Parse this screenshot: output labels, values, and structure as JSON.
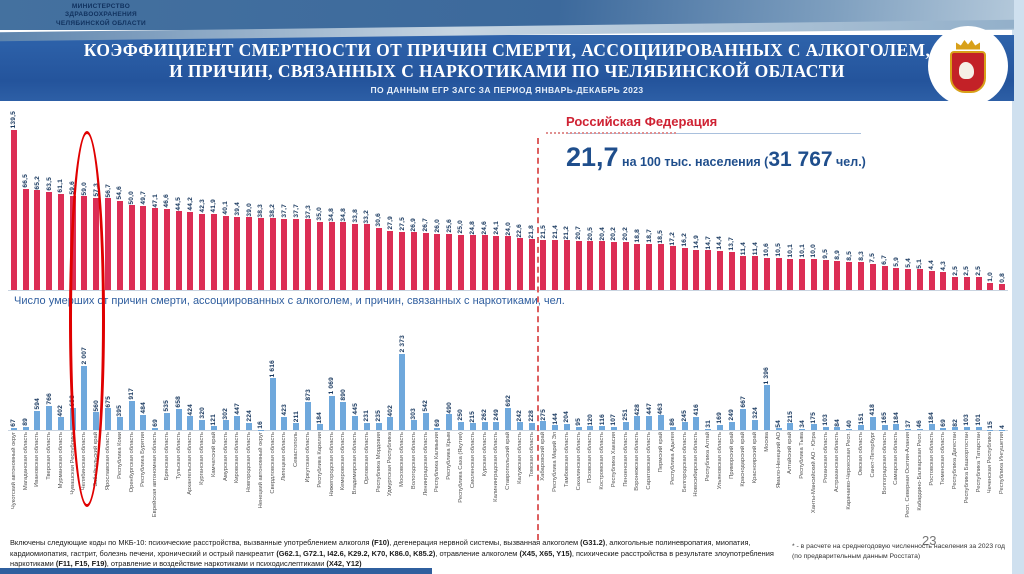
{
  "header": {
    "ministry_lines": [
      "МИНИСТЕРСТВО",
      "ЗДРАВООХРАНЕНИЯ",
      "ЧЕЛЯБИНСКОЙ ОБЛАСТИ"
    ],
    "title_lines": [
      "КОЭФФИЦИЕНТ СМЕРТНОСТИ  ОТ ПРИЧИН СМЕРТИ, АССОЦИИРОВАННЫХ С АЛКОГОЛЕМ,",
      "И ПРИЧИН, СВЯЗАННЫХ С НАРКОТИКАМИ ПО ЧЕЛЯБИНСКОЙ ОБЛАСТИ"
    ],
    "subtitle": "ПО ДАННЫМ ЕГР ЗАГС ЗА ПЕРИОД ЯНВАРЬ-ДЕКАБРЬ 2023"
  },
  "rf": {
    "title": "Российская Федерация",
    "value": "21,7",
    "per_text": " на 100 тыс. населения (",
    "count": "31 767",
    "unit_text": " чел.)"
  },
  "footer": {
    "segments": [
      {
        "text": "Включены следующие коды по МКБ-10: психические расстройства, вызванные употреблением алкоголя ",
        "bold": false
      },
      {
        "text": "(F10)",
        "bold": true
      },
      {
        "text": ", дегенерация нервной системы, вызванная алкоголем ",
        "bold": false
      },
      {
        "text": "(G31.2)",
        "bold": true
      },
      {
        "text": ", алкогольные полиневропатия, миопатия, кардиомиопатия, гастрит, болезнь печени, хронический и острый панкреатит ",
        "bold": false
      },
      {
        "text": "(G62.1, G72.1, I42.6, K29.2, K70, K86.0, K85.2)",
        "bold": true
      },
      {
        "text": ", отравление алкоголем ",
        "bold": false
      },
      {
        "text": "(X45, X65, Y15)",
        "bold": true
      },
      {
        "text": ", психические расстройства в результате злоупотребления наркотиками ",
        "bold": false
      },
      {
        "text": "(F11, F15, F19)",
        "bold": true
      },
      {
        "text": ", отравление и воздействие  наркотиками и психодислептиками ",
        "bold": false
      },
      {
        "text": "(X42, Y12)",
        "bold": true
      }
    ],
    "note": "* - в расчете на среднегодовую численность населения за 2023 год (по предварительным данным Росстата)"
  },
  "page_number": "23",
  "colors": {
    "bar_red": "#dc2e55",
    "bar_blue": "#6fa8dc",
    "value_label_blue": "#17375e",
    "header_blue": "#24549c",
    "rf_red": "#cf2233",
    "highlight_red": "#e00000",
    "section_label_blue": "#2e5d9e"
  },
  "chart_data": [
    {
      "type": "bar",
      "title": "",
      "ylabel": "Коэффициент смертности на 100 тыс. населения",
      "bar_color": "#dc2e55",
      "grid": false,
      "legend": "none",
      "categories": [
        "Чукотский автономный округ",
        "Магаданская область",
        "Ивановская область",
        "Тверская область",
        "Мурманская область",
        "Чувашская Республика",
        "Челябинская область",
        "Забайкальский край",
        "Ярославская область",
        "Республика Коми",
        "Оренбургская область",
        "Республика Бурятия",
        "Еврейская автономная область",
        "Брянская область",
        "Тульская область",
        "Архангельская область",
        "Курганская область",
        "Камчатский край",
        "Амурская область",
        "Кировская область",
        "Новгородская область",
        "Ненецкий автономный округ",
        "Свердловская область",
        "Липецкая область",
        "Севастополь",
        "Иркутская область",
        "Республика Карелия",
        "Нижегородская область",
        "Кемеровская область",
        "Владимирская область",
        "Орловская область",
        "Республика Мордовия",
        "Удмуртская Республика",
        "Московская область",
        "Вологодская область",
        "Ленинградская область",
        "Республика Калмыкия",
        "Республика Крым",
        "Республика Саха (Якутия)",
        "Смоленская область",
        "Курская область",
        "Калининградская область",
        "Ставропольский край",
        "Калужская область",
        "Томская область",
        "Хабаровский край",
        "Республика Марий Эл",
        "Тамбовская область",
        "Сахалинская область",
        "Псковская область",
        "Костромская область",
        "Республика Хакасия",
        "Пензенская область",
        "Воронежская область",
        "Саратовская область",
        "Пермский край",
        "Республика Адыгея",
        "Белгородская область",
        "Новосибирская область",
        "Республика Алтай",
        "Ульяновская область",
        "Приморский край",
        "Краснодарский край",
        "Красноярский край",
        "Москва",
        "Ямало-Ненецкий АО",
        "Алтайский край",
        "Республика Тыва",
        "Ханты-Мансийский АО - Югра",
        "Рязанская область",
        "Астраханская область",
        "Карачаево-Черкесская Респ.",
        "Омская область",
        "Санкт-Петербург",
        "Волгоградская область",
        "Самарская область",
        "Респ. Северная Осетия-Алания",
        "Кабардино-Балкарская Респ.",
        "Ростовская область",
        "Тюменская область",
        "Республика Дагестан",
        "Республика Башкортостан",
        "Республика Татарстан",
        "Чеченская Республика",
        "Республика Ингушетия"
      ],
      "values": [
        139.5,
        66.5,
        65.2,
        63.5,
        61.1,
        59.6,
        59.0,
        57.3,
        56.7,
        54.6,
        50.0,
        49.7,
        47.1,
        46.6,
        44.5,
        44.2,
        42.3,
        41.9,
        40.1,
        39.4,
        39.0,
        38.3,
        38.2,
        37.7,
        37.7,
        37.3,
        35.0,
        34.8,
        34.8,
        33.8,
        33.2,
        30.6,
        27.9,
        27.5,
        26.9,
        26.7,
        26.0,
        25.6,
        25.0,
        24.8,
        24.6,
        24.1,
        24.0,
        22.6,
        21.8,
        21.5,
        21.4,
        21.2,
        20.7,
        20.5,
        20.4,
        20.2,
        20.2,
        18.8,
        18.7,
        18.5,
        17.2,
        16.2,
        14.9,
        14.7,
        14.4,
        13.7,
        11.4,
        11.4,
        10.6,
        10.5,
        10.1,
        10.1,
        10.0,
        9.5,
        8.9,
        8.5,
        8.3,
        7.5,
        6.7,
        5.9,
        5.4,
        5.1,
        4.4,
        4.3,
        2.5,
        2.5,
        2.5,
        1.0,
        0.8
      ],
      "highlight": {
        "category": "Челябинская область",
        "index": 6,
        "style": "red-ellipse"
      },
      "reference_line": {
        "label": "Российская Федерация",
        "value": 21.7,
        "count": 31767,
        "after_index": 44,
        "style": "red-dashed-vertical"
      }
    },
    {
      "type": "bar",
      "title": "Число умерших от причин смерти, ассоциированных с алкоголем, и причин, связанных с наркотиками, чел.",
      "bar_color": "#6fa8dc",
      "grid": false,
      "legend": "none",
      "categories_same_as_chart": 0,
      "values": [
        67,
        89,
        594,
        766,
        402,
        698,
        2007,
        560,
        675,
        395,
        917,
        484,
        69,
        535,
        658,
        424,
        320,
        121,
        302,
        447,
        224,
        16,
        1616,
        423,
        211,
        873,
        184,
        1069,
        890,
        445,
        231,
        235,
        402,
        2373,
        303,
        542,
        69,
        490,
        250,
        215,
        262,
        249,
        692,
        242,
        228,
        275,
        144,
        204,
        95,
        120,
        116,
        107,
        251,
        428,
        447,
        463,
        86,
        245,
        416,
        31,
        169,
        249,
        667,
        324,
        1396,
        54,
        215,
        34,
        175,
        103,
        84,
        40,
        151,
        418,
        165,
        184,
        37,
        46,
        184,
        69,
        82,
        103,
        101,
        15,
        4
      ]
    }
  ]
}
